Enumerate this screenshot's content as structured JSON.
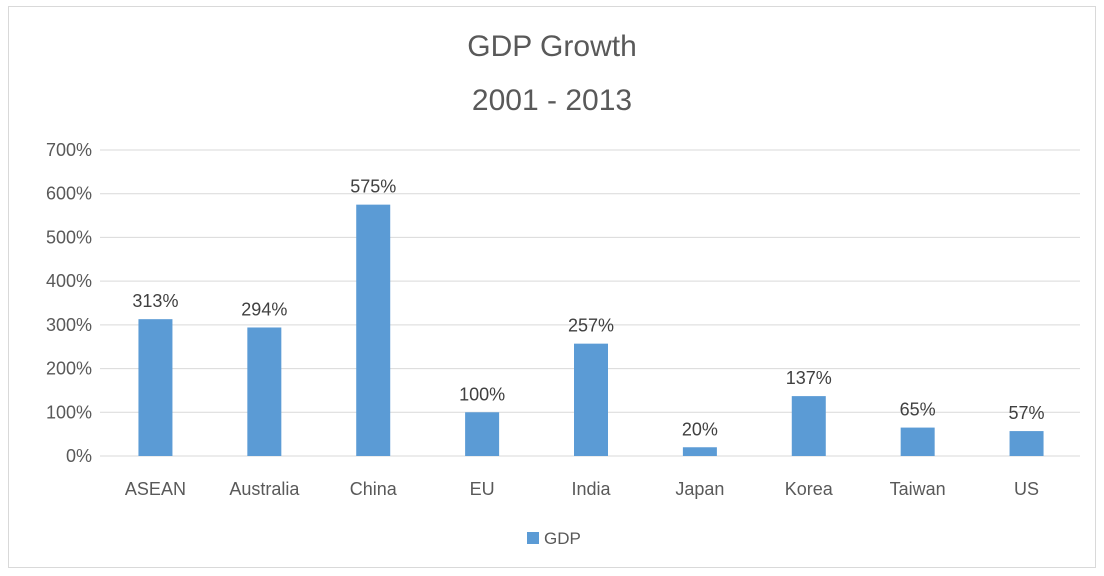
{
  "chart_data": {
    "type": "bar",
    "title_lines": [
      "GDP Growth",
      "2001 - 2013"
    ],
    "categories": [
      "ASEAN",
      "Australia",
      "China",
      "EU",
      "India",
      "Japan",
      "Korea",
      "Taiwan",
      "US"
    ],
    "series": [
      {
        "name": "GDP",
        "values": [
          313,
          294,
          575,
          100,
          257,
          20,
          137,
          65,
          57
        ],
        "color": "#5b9bd5"
      }
    ],
    "data_labels": [
      "313%",
      "294%",
      "575%",
      "100%",
      "257%",
      "20%",
      "137%",
      "65%",
      "57%"
    ],
    "y_ticks": [
      "0%",
      "100%",
      "200%",
      "300%",
      "400%",
      "500%",
      "600%",
      "700%"
    ],
    "ylim": [
      0,
      700
    ],
    "y_unit": "%",
    "grid": true,
    "legend_position": "bottom",
    "colors": {
      "gridline": "#d9d9d9",
      "text": "#595959"
    }
  }
}
